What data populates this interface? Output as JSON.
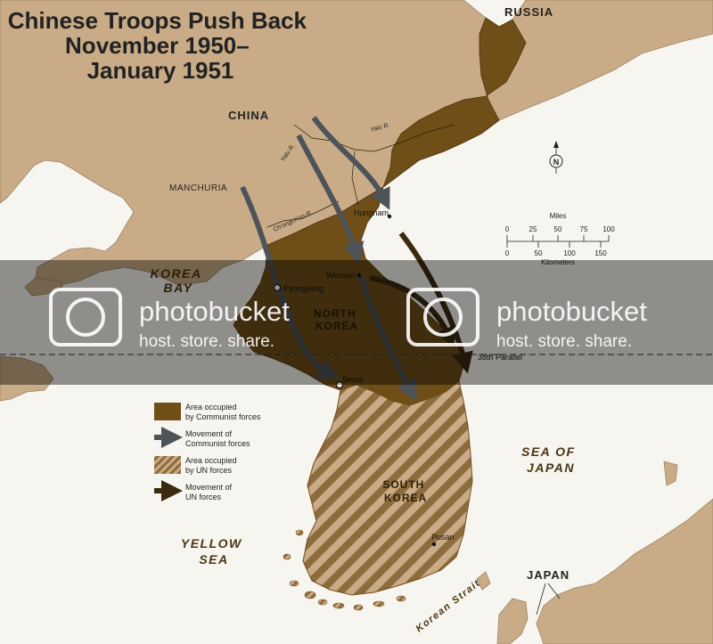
{
  "map": {
    "title_lines": [
      "Chinese Troops Push Back",
      "November 1950–",
      "January 1951"
    ],
    "labels": {
      "russia": "RUSSIA",
      "china": "CHINA",
      "manchuria": "MANCHURIA",
      "japan": "JAPAN",
      "north_korea_line1": "NORTH",
      "north_korea_line2": "KOREA",
      "south_korea_line1": "SOUTH",
      "south_korea_line2": "KOREA",
      "korea_bay_line1": "KOREA",
      "korea_bay_line2": "BAY",
      "yellow_sea_line1": "YELLOW",
      "yellow_sea_line2": "SEA",
      "sea_of_japan_line1": "SEA OF",
      "sea_of_japan_line2": "JAPAN",
      "korean_strait": "Korean Strait",
      "parallel_38": "38th Parallel",
      "yalu_1": "Yalu R.",
      "yalu_2": "Yalu R.",
      "chongchon": "Ch'ongch'on R."
    },
    "cities": {
      "hungnam": "Hungnam",
      "wonsan": "Wonsan",
      "pyongyang": "Pyongyang",
      "seoul": "Seoul",
      "pusan": "Pusan"
    },
    "legend": {
      "communist_area": [
        "Area occupied",
        "by Communist forces"
      ],
      "communist_move": [
        "Movement of",
        "Communist forces"
      ],
      "un_area": [
        "Area occupied",
        "by UN forces"
      ],
      "un_move": [
        "Movement of",
        "UN forces"
      ]
    },
    "scale": {
      "miles_label": "Miles",
      "km_label": "Kilometers",
      "miles_ticks": [
        "0",
        "25",
        "50",
        "75",
        "100"
      ],
      "km_ticks": [
        "0",
        "50",
        "100",
        "150"
      ]
    },
    "compass": "N",
    "colors": {
      "communist": "#6f4e17",
      "un_stripe": "#8c6b3c",
      "land": "#c9ac87",
      "sea": "#f7f5ef",
      "communist_arrow": "#4d5459",
      "un_arrow": "#3a2a0e"
    }
  },
  "watermark": {
    "brand": "photobucket",
    "tagline": "host. store. share."
  }
}
